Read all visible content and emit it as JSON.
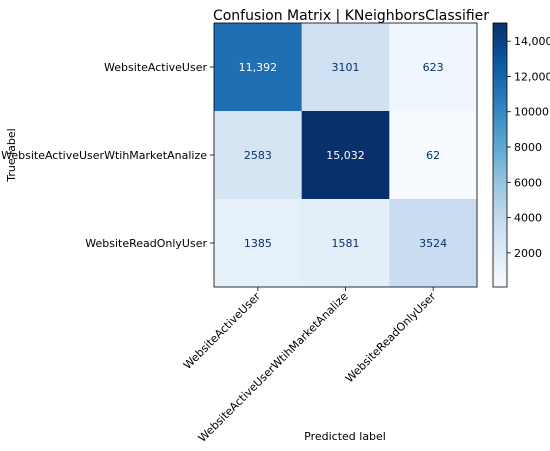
{
  "chart_data": {
    "type": "heatmap",
    "title": "Confusion Matrix | KNeighborsClassifier",
    "xlabel": "Predicted label",
    "ylabel": "True label",
    "row_labels": [
      "WebsiteActiveUser",
      "WebsiteActiveUserWtihMarketAnalize",
      "WebsiteReadOnlyUser"
    ],
    "col_labels": [
      "WebsiteActiveUser",
      "WebsiteActiveUserWtihMarketAnalize",
      "WebsiteReadOnlyUser"
    ],
    "values": [
      [
        11392,
        3101,
        623
      ],
      [
        2583,
        15032,
        62
      ],
      [
        1385,
        1581,
        3524
      ]
    ],
    "cell_labels": [
      [
        "11,392",
        "3101",
        "623"
      ],
      [
        "2583",
        "15,032",
        "62"
      ],
      [
        "1385",
        "1581",
        "3524"
      ]
    ],
    "colormap": "Blues",
    "colorbar": {
      "range": [
        62,
        15032
      ],
      "ticks": [
        2000,
        4000,
        6000,
        8000,
        10000,
        12000,
        14000
      ],
      "tick_labels": [
        "2000",
        "4000",
        "6000",
        "8000",
        "10000",
        "12,000",
        "14,000"
      ]
    },
    "grid": false
  }
}
